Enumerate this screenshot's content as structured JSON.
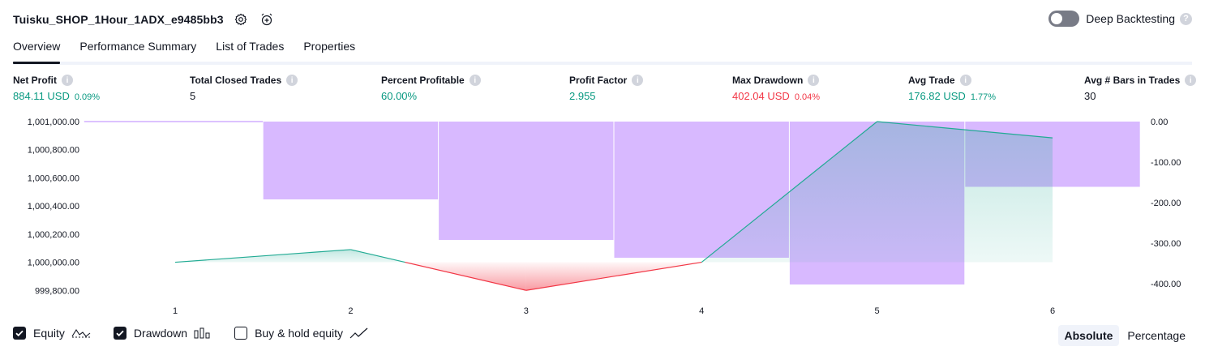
{
  "header": {
    "strategy_name": "Tuisku_SHOP_1Hour_1ADX_e9485bb3",
    "deep_backtesting_label": "Deep Backtesting",
    "deep_backtesting_enabled": false
  },
  "tabs": [
    {
      "label": "Overview",
      "active": true
    },
    {
      "label": "Performance Summary",
      "active": false
    },
    {
      "label": "List of Trades",
      "active": false
    },
    {
      "label": "Properties",
      "active": false
    }
  ],
  "metrics": [
    {
      "label": "Net Profit",
      "value": "884.11 USD",
      "sub": "0.09%",
      "color": "#089981"
    },
    {
      "label": "Total Closed Trades",
      "value": "5",
      "sub": "",
      "color": "#131722"
    },
    {
      "label": "Percent Profitable",
      "value": "60.00%",
      "sub": "",
      "color": "#089981"
    },
    {
      "label": "Profit Factor",
      "value": "2.955",
      "sub": "",
      "color": "#089981"
    },
    {
      "label": "Max Drawdown",
      "value": "402.04 USD",
      "sub": "0.04%",
      "color": "#f23645"
    },
    {
      "label": "Avg Trade",
      "value": "176.82 USD",
      "sub": "1.77%",
      "color": "#089981"
    },
    {
      "label": "Avg # Bars in Trades",
      "value": "30",
      "sub": "",
      "color": "#131722"
    }
  ],
  "chart_data": {
    "type": "line",
    "x": [
      1,
      2,
      3,
      4,
      5,
      6
    ],
    "left_axis_ticks": [
      "1,001,000.00",
      "1,000,800.00",
      "1,000,600.00",
      "1,000,400.00",
      "1,000,200.00",
      "1,000,000.00",
      "999,800.00"
    ],
    "right_axis_ticks": [
      "0.00",
      "-100.00",
      "-200.00",
      "-300.00",
      "-400.00"
    ],
    "ylim_left": [
      999790,
      1001000
    ],
    "ylim_right": [
      -420,
      0
    ],
    "series": [
      {
        "values": [
          1000000,
          1000090,
          999800,
          1000000,
          1001000,
          1000884
        ],
        "color": "#22ab94"
      },
      {
        "values": [
          0,
          -192,
          -292,
          -336,
          -402,
          -161
        ],
        "color": "#c794ff"
      }
    ],
    "equity_upper_color": "#22ab94",
    "equity_lower_color": "#f23645",
    "drawdown_color": "#d1adff"
  },
  "legend": [
    {
      "label": "Equity",
      "checked": true,
      "icon": "equity-line-icon"
    },
    {
      "label": "Drawdown",
      "checked": true,
      "icon": "drawdown-bars-icon"
    },
    {
      "label": "Buy & hold equity",
      "checked": false,
      "icon": "buy-hold-line-icon"
    }
  ],
  "modes": [
    {
      "label": "Absolute",
      "active": true
    },
    {
      "label": "Percentage",
      "active": false
    }
  ]
}
